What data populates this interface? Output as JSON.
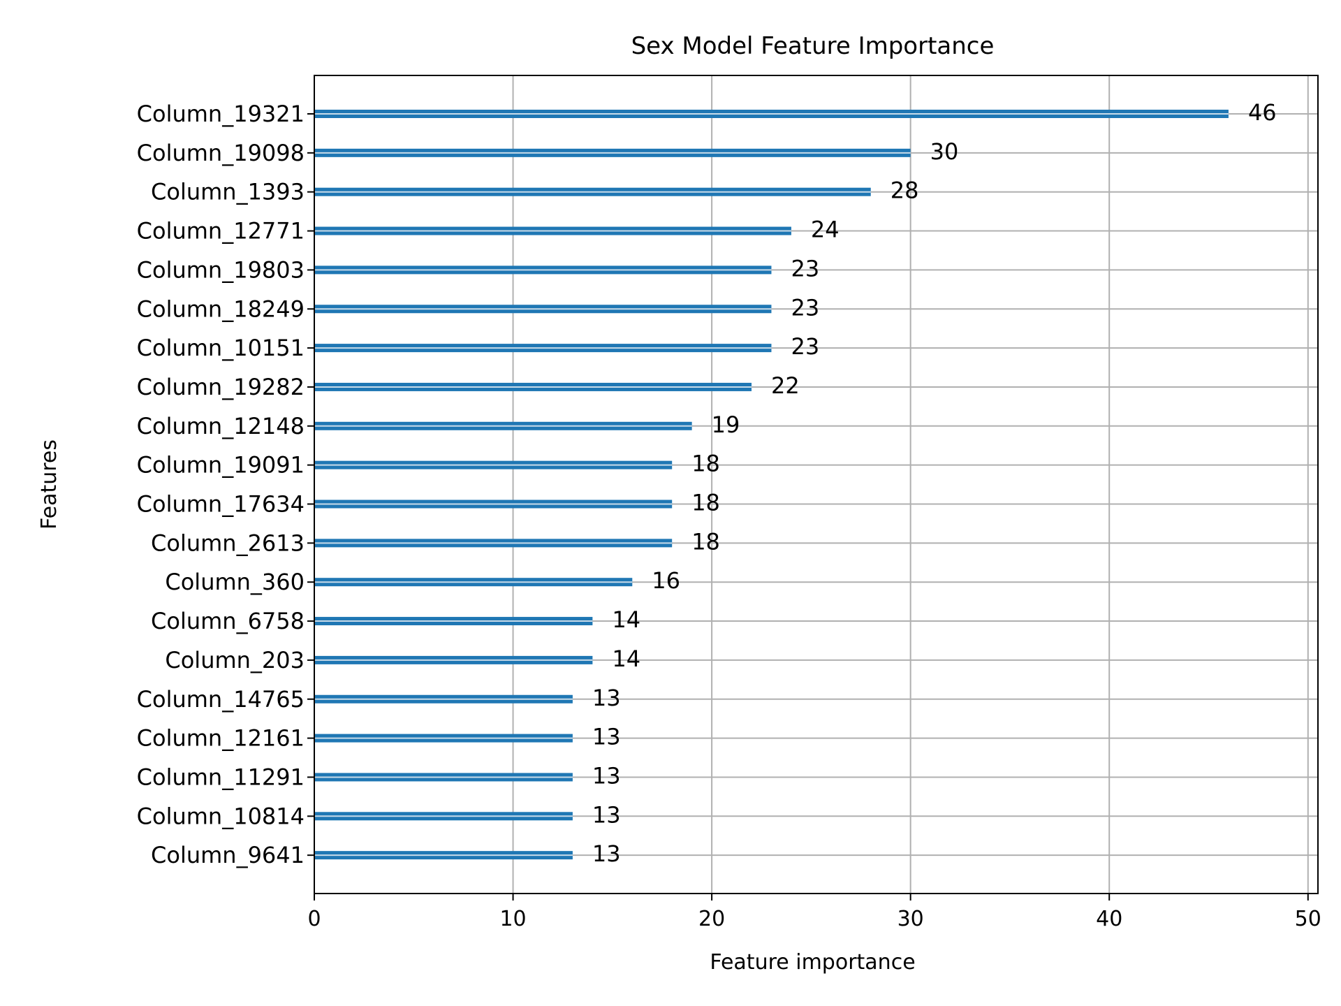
{
  "chart_data": {
    "type": "bar",
    "orientation": "horizontal",
    "title": "Sex Model Feature Importance",
    "xlabel": "Feature importance",
    "ylabel": "Features",
    "xlim": [
      0,
      50.5
    ],
    "xticks": [
      0,
      10,
      20,
      30,
      40,
      50
    ],
    "grid": true,
    "bar_color": "#1f77b4",
    "categories": [
      "Column_19321",
      "Column_19098",
      "Column_1393",
      "Column_12771",
      "Column_19803",
      "Column_18249",
      "Column_10151",
      "Column_19282",
      "Column_12148",
      "Column_19091",
      "Column_17634",
      "Column_2613",
      "Column_360",
      "Column_6758",
      "Column_203",
      "Column_14765",
      "Column_12161",
      "Column_11291",
      "Column_10814",
      "Column_9641"
    ],
    "values": [
      46,
      30,
      28,
      24,
      23,
      23,
      23,
      22,
      19,
      18,
      18,
      18,
      16,
      14,
      14,
      13,
      13,
      13,
      13,
      13
    ],
    "data_labels": [
      "46",
      "30",
      "28",
      "24",
      "23",
      "23",
      "23",
      "22",
      "19",
      "18",
      "18",
      "18",
      "16",
      "14",
      "14",
      "13",
      "13",
      "13",
      "13",
      "13"
    ]
  }
}
